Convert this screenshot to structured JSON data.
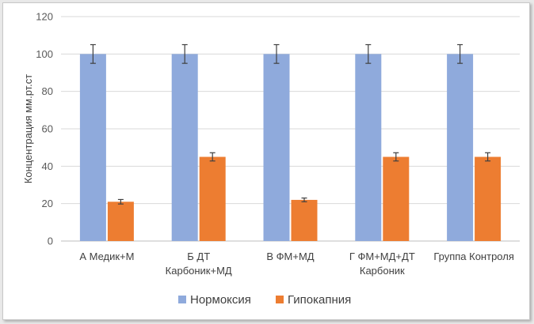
{
  "chart_data": {
    "type": "bar",
    "title": "",
    "ylabel": "Концентрация мм.рт.ст",
    "xlabel": "",
    "ylim": [
      0,
      120
    ],
    "yticks": [
      "0",
      "20",
      "40",
      "60",
      "80",
      "100",
      "120"
    ],
    "categories": [
      [
        "А Медик+М"
      ],
      [
        "Б ДТ",
        "Карбоник+МД"
      ],
      [
        "В ФМ+МД"
      ],
      [
        "Г ФМ+МД+ДТ",
        "Карбоник"
      ],
      [
        "Группа Контроля"
      ]
    ],
    "series": [
      {
        "name": "Нормоксия",
        "color": "#8faadc",
        "values": [
          100,
          100,
          100,
          100,
          100
        ],
        "errors": [
          5,
          5,
          5,
          5,
          5
        ]
      },
      {
        "name": "Гипокапния",
        "color": "#ed7d31",
        "values": [
          21,
          45,
          22,
          45,
          45
        ],
        "errors": [
          1.2,
          2.2,
          1.0,
          2.2,
          2.2
        ]
      }
    ],
    "grid": true,
    "legend": "bottom"
  }
}
